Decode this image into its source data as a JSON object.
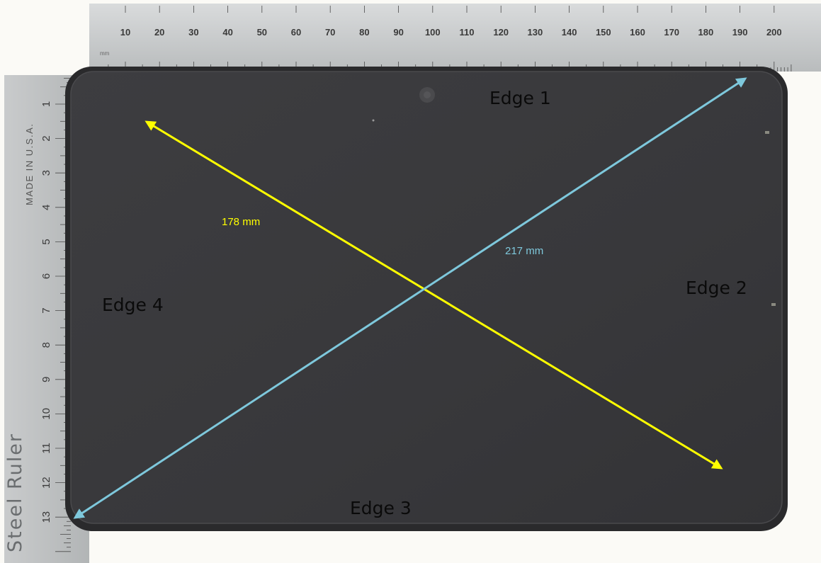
{
  "photo": {
    "labels": {
      "edge_1": "Edge 1",
      "edge_2": "Edge 2",
      "edge_3": "Edge 3",
      "edge_4": "Edge 4"
    },
    "measurements": {
      "diagonal_yellow": "178 mm",
      "diagonal_blue": "217 mm"
    },
    "colors": {
      "yellow_arrow": "#ffff00",
      "blue_arrow": "#7ec8dc",
      "device_screen": "#3a3a3c",
      "device_bezel": "#2c2c2e",
      "ruler": "#c8cacb"
    },
    "top_ruler": {
      "unit": "mm",
      "ticks": [
        "10",
        "20",
        "30",
        "40",
        "50",
        "60",
        "70",
        "80",
        "90",
        "100",
        "110",
        "120",
        "130",
        "140",
        "150",
        "160",
        "170",
        "180",
        "190",
        "200"
      ]
    },
    "left_ruler": {
      "brand": "MADE IN U.S.A.",
      "maker": "Steel Ruler",
      "ticks": [
        "1",
        "2",
        "3",
        "4",
        "5",
        "6",
        "7",
        "8",
        "9",
        "10",
        "11",
        "12",
        "13"
      ]
    }
  }
}
